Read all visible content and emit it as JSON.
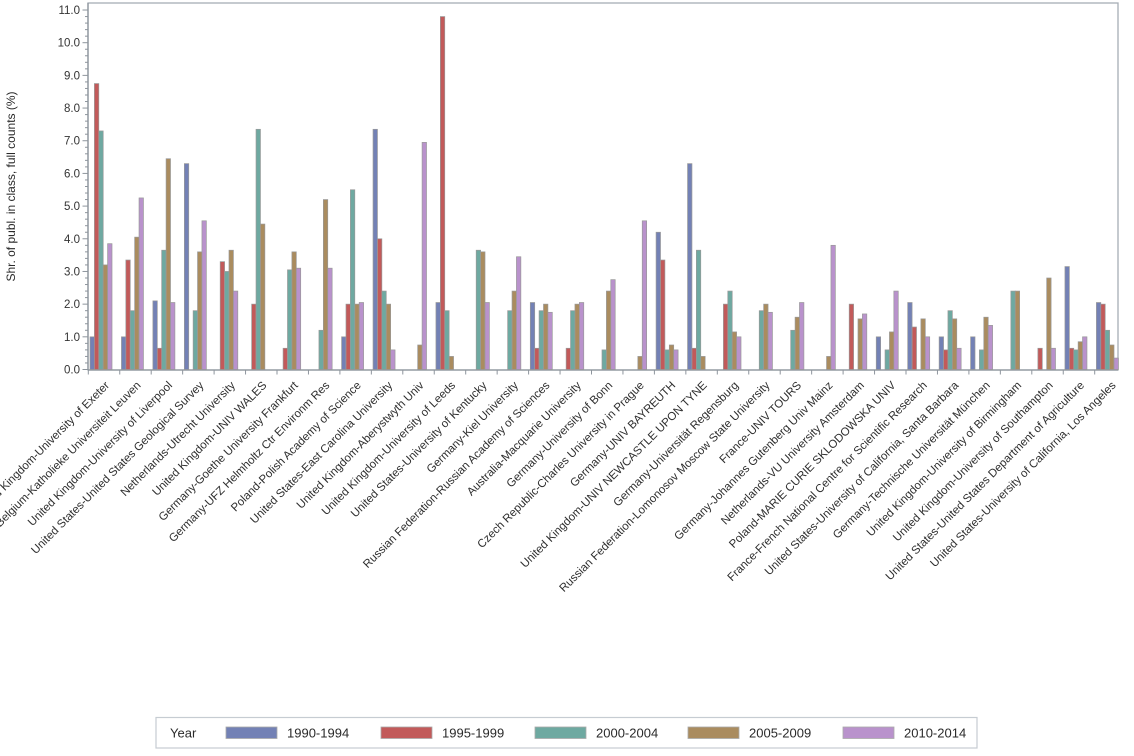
{
  "figure": {
    "background": "#ffffff"
  },
  "chart_data": {
    "type": "bar",
    "title": "",
    "xlabel": "",
    "ylabel": "Shr. of publ. in class, full counts (%)",
    "ylim": [
      0,
      11.2
    ],
    "yticks": {
      "min": 0,
      "max": 11,
      "step": 1,
      "minor_step": 0.2,
      "decimals": 1
    },
    "grid": false,
    "legend": {
      "title": "Year",
      "position": "bottom"
    },
    "categories": [
      "United Kingdom-University of Exeter",
      "Belgium-Katholieke Universiteit Leuven",
      "United Kingdom-University of Liverpool",
      "United States-United States Geological Survey",
      "Netherlands-Utrecht University",
      "United Kingdom-UNIV WALES",
      "Germany-Goethe University Frankfurt",
      "Germany-UFZ Helmholtz Ctr Environm Res",
      "Poland-Polish Academy of Science",
      "United States-East Carolina University",
      "United Kingdom-Aberystwyth Univ",
      "United Kingdom-University of Leeds",
      "United States-University of Kentucky",
      "Germany-Kiel University",
      "Russian Federation-Russian Academy of Sciences",
      "Australia-Macquarie University",
      "Germany-University of Bonn",
      "Czech Republic-Charles University in Prague",
      "Germany-UNIV BAYREUTH",
      "United Kingdom-UNIV NEWCASTLE UPON TYNE",
      "Germany-Universität Regensburg",
      "Russian Federation-Lomonosov Moscow State University",
      "France-UNIV TOURS",
      "Germany-Johannes Gutenberg Univ Mainz",
      "Netherlands-VU University Amsterdam",
      "Poland-MARIE CURIE SKLODOWSKA UNIV",
      "France-French National Centre for Scientific Research",
      "United States-University of California, Santa Barbara",
      "Germany-Technische Universität München",
      "United Kingdom-University of Birmingham",
      "United Kingdom-University of Southampton",
      "United States-United States Department of Agriculture",
      "United States-University of California, Los Angeles"
    ],
    "series": [
      {
        "name": "1990-1994",
        "color": "#7381b5",
        "values": [
          1.0,
          1.0,
          2.1,
          6.3,
          0,
          0,
          0,
          0,
          1.0,
          7.35,
          0,
          2.05,
          0,
          0,
          2.05,
          0,
          0,
          0,
          4.2,
          6.3,
          0,
          0,
          0,
          0,
          0,
          1.0,
          2.05,
          1.0,
          1.0,
          0,
          0,
          3.15,
          2.05
        ]
      },
      {
        "name": "1995-1999",
        "color": "#c25a5a",
        "values": [
          8.75,
          3.35,
          0.65,
          0,
          3.3,
          2.0,
          0.65,
          0,
          2.0,
          4.0,
          0,
          10.8,
          0,
          0,
          0.65,
          0.65,
          0,
          0,
          3.35,
          0.65,
          2.0,
          0,
          0,
          0,
          2.0,
          0,
          1.3,
          0.6,
          0,
          0,
          0.65,
          0.65,
          2.0
        ]
      },
      {
        "name": "2000-2004",
        "color": "#6ea9a1",
        "values": [
          7.3,
          1.8,
          3.65,
          1.8,
          3.0,
          7.35,
          3.05,
          1.2,
          5.5,
          2.4,
          0,
          1.8,
          3.65,
          1.8,
          1.8,
          1.8,
          0.6,
          0,
          0.6,
          3.65,
          2.4,
          1.8,
          1.2,
          0,
          0,
          0.6,
          0,
          1.8,
          0.6,
          2.4,
          0,
          0.6,
          1.2
        ]
      },
      {
        "name": "2005-2009",
        "color": "#aa8c5f",
        "values": [
          3.2,
          4.05,
          6.45,
          3.6,
          3.65,
          4.45,
          3.6,
          5.2,
          2.0,
          2.0,
          0.75,
          0.4,
          3.6,
          2.4,
          2.0,
          2.0,
          2.4,
          0.4,
          0.75,
          0.4,
          1.15,
          2.0,
          1.6,
          0.4,
          1.55,
          1.15,
          1.55,
          1.55,
          1.6,
          2.4,
          2.8,
          0.85,
          0.75
        ]
      },
      {
        "name": "2010-2014",
        "color": "#b992cc",
        "values": [
          3.85,
          5.25,
          2.05,
          4.55,
          2.4,
          0,
          3.1,
          3.1,
          2.05,
          0.6,
          6.95,
          0,
          2.05,
          3.45,
          1.75,
          2.05,
          2.75,
          4.55,
          0.6,
          0,
          1.0,
          1.75,
          2.05,
          3.8,
          1.7,
          2.4,
          1.0,
          0.65,
          1.35,
          0,
          0.65,
          1.0,
          0.35
        ]
      }
    ],
    "style": {
      "frame_color": "#a6adb5",
      "axis_color": "#8e959d",
      "tick_color": "#8e959d",
      "text_color": "#333333",
      "bar_outline": "#999999",
      "legend_border": "#c6ccd2"
    }
  }
}
